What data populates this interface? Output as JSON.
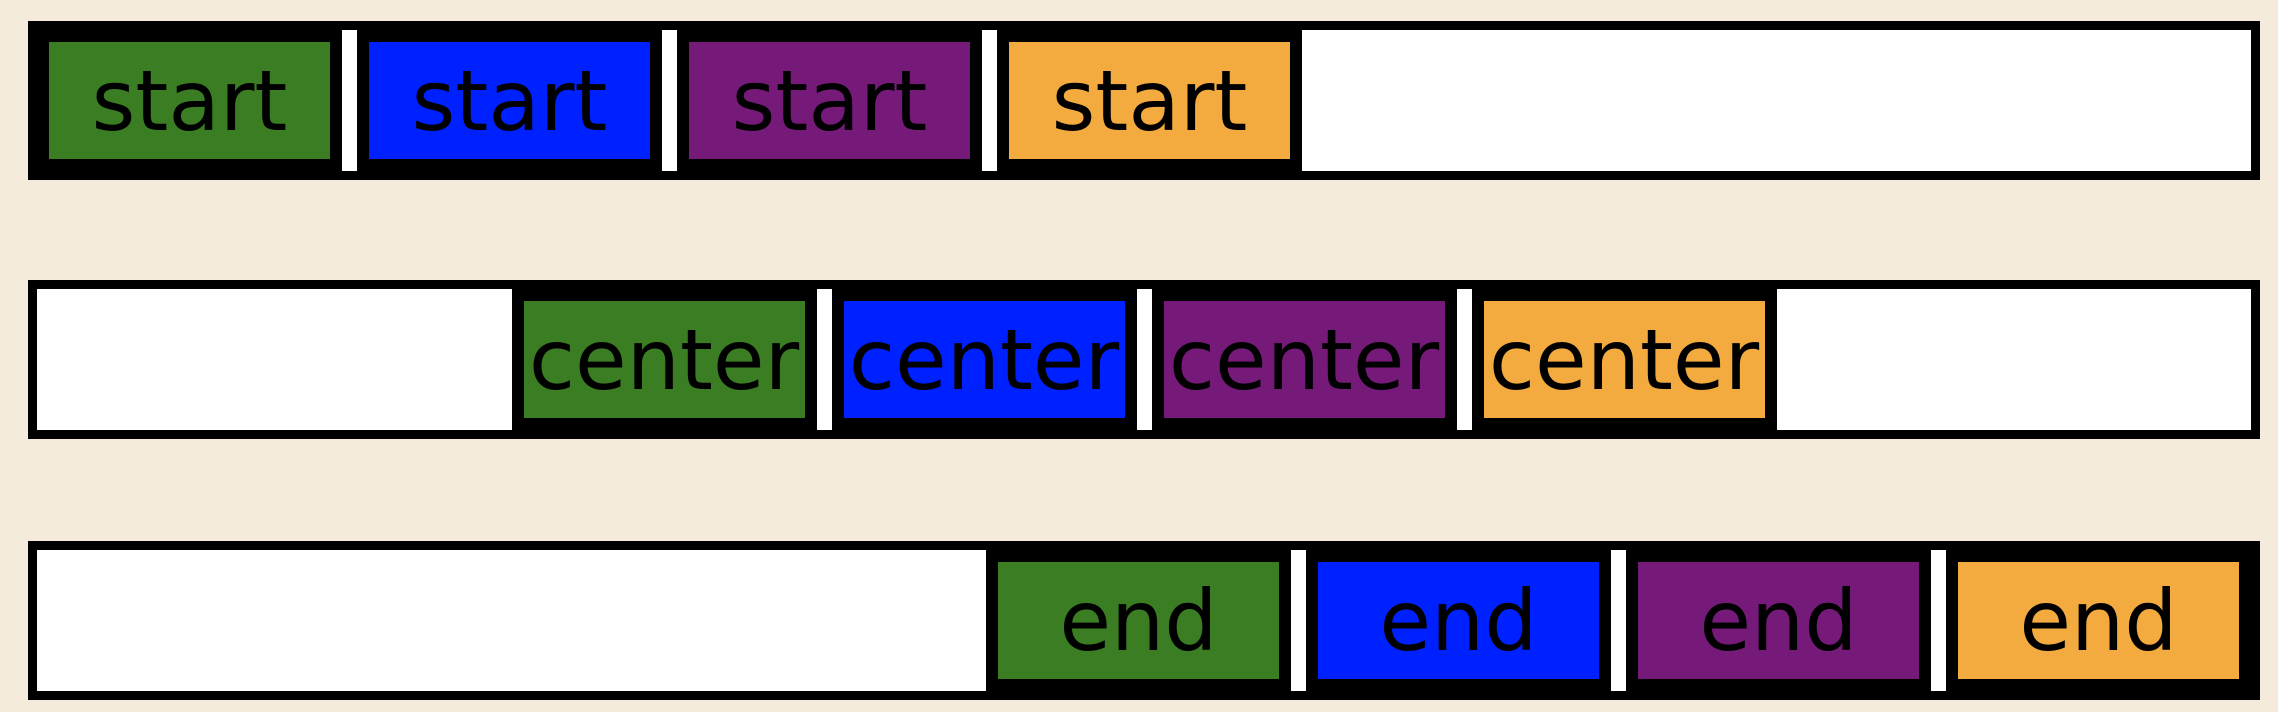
{
  "colors": {
    "background": "#f5ebdc",
    "item_colors": [
      "#3a7d22",
      "#0021ff",
      "#761a7a",
      "#f3ab3f"
    ]
  },
  "rows": [
    {
      "name": "start",
      "items": [
        "start",
        "start",
        "start",
        "start"
      ]
    },
    {
      "name": "center",
      "items": [
        "center",
        "center",
        "center",
        "center"
      ]
    },
    {
      "name": "end",
      "items": [
        "end",
        "end",
        "end",
        "end"
      ]
    }
  ]
}
